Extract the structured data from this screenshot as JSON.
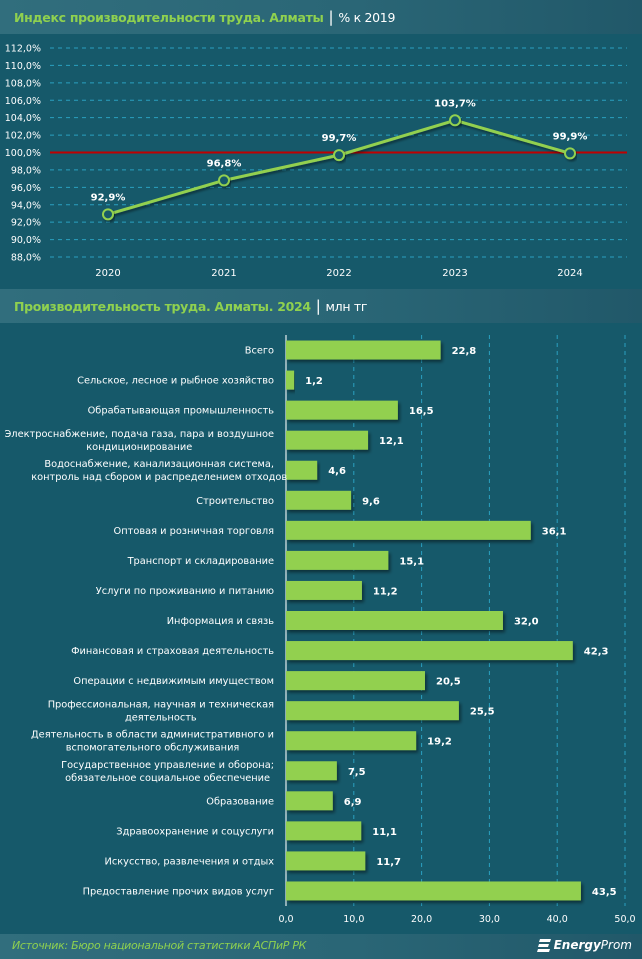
{
  "header1": {
    "title": "Индекс производительности труда. Алматы",
    "separator": "|",
    "unit": "% к 2019"
  },
  "header2": {
    "title": "Производительность труда. Алматы. 2024",
    "separator": "|",
    "unit": "млн тг"
  },
  "footer": {
    "source": "Источник: Бюро национальной статистики АСПиР РК",
    "logo_bold": "Energy",
    "logo_light": "Prom",
    "logo_icon": "energyprom-logo-icon"
  },
  "colors": {
    "background": "#16596a",
    "accent_green": "#8fd14f",
    "bar_green": "#92d050",
    "reference_line": "#c00000",
    "grid": "#2aa0c0",
    "text": "#ffffff"
  },
  "chart_data": [
    {
      "type": "line",
      "title": "Индекс производительности труда. Алматы",
      "unit": "% к 2019",
      "x": [
        "2020",
        "2021",
        "2022",
        "2023",
        "2024"
      ],
      "series": [
        {
          "name": "Индекс производительности труда",
          "values": [
            92.9,
            96.8,
            99.7,
            103.7,
            99.9
          ],
          "labels": [
            "92,9%",
            "96,8%",
            "99,7%",
            "103,7%",
            "99,9%"
          ]
        }
      ],
      "reference_line": {
        "value": 100.0
      },
      "ylim": [
        88,
        112
      ],
      "yticks": [
        112,
        110,
        108,
        106,
        104,
        102,
        100,
        98,
        96,
        94,
        92,
        90,
        88
      ],
      "ytick_labels": [
        "112,0%",
        "110,0%",
        "108,0%",
        "106,0%",
        "104,0%",
        "102,0%",
        "100,0%",
        "98,0%",
        "96,0%",
        "94,0%",
        "92,0%",
        "90,0%",
        "88,0%"
      ],
      "grid": true,
      "legend": "none"
    },
    {
      "type": "bar",
      "orientation": "horizontal",
      "title": "Производительность труда. Алматы. 2024",
      "unit": "млн тг",
      "categories": [
        [
          "Всего"
        ],
        [
          "Сельское, лесное и рыбное хозяйство"
        ],
        [
          "Обрабатывающая промышленность"
        ],
        [
          "Электроснабжение, подача газа, пара и воздушное",
          "кондиционирование"
        ],
        [
          "Водоснабжение, канализационная система,",
          "контроль над сбором и распределением отходов"
        ],
        [
          "Строительство"
        ],
        [
          "Оптовая и розничная торговля"
        ],
        [
          "Транспорт и складирование"
        ],
        [
          "Услуги по проживанию и питанию"
        ],
        [
          "Информация и связь"
        ],
        [
          "Финансовая и страховая деятельность"
        ],
        [
          "Операции с недвижимым имуществом"
        ],
        [
          "Профессиональная, научная и техническая",
          "деятельность"
        ],
        [
          "Деятельность в области административного и",
          "вспомогательного обслуживания"
        ],
        [
          "Государственное управление и оборона;",
          "обязательное социальное обеспечение"
        ],
        [
          "Образование"
        ],
        [
          "Здравоохранение и соцуслуги"
        ],
        [
          "Искусство, развлечения и отдых"
        ],
        [
          "Предоставление прочих видов услуг"
        ]
      ],
      "values": [
        22.8,
        1.2,
        16.5,
        12.1,
        4.6,
        9.6,
        36.1,
        15.1,
        11.2,
        32.0,
        42.3,
        20.5,
        25.5,
        19.2,
        7.5,
        6.9,
        11.1,
        11.7,
        43.5
      ],
      "labels": [
        "22,8",
        "1,2",
        "16,5",
        "12,1",
        "4,6",
        "9,6",
        "36,1",
        "15,1",
        "11,2",
        "32,0",
        "42,3",
        "20,5",
        "25,5",
        "19,2",
        "7,5",
        "6,9",
        "11,1",
        "11,7",
        "43,5"
      ],
      "xlim": [
        0,
        50
      ],
      "xticks": [
        0,
        10,
        20,
        30,
        40,
        50
      ],
      "xtick_labels": [
        "0,0",
        "10,0",
        "20,0",
        "30,0",
        "40,0",
        "50,0"
      ],
      "grid": true,
      "legend": "none"
    }
  ]
}
